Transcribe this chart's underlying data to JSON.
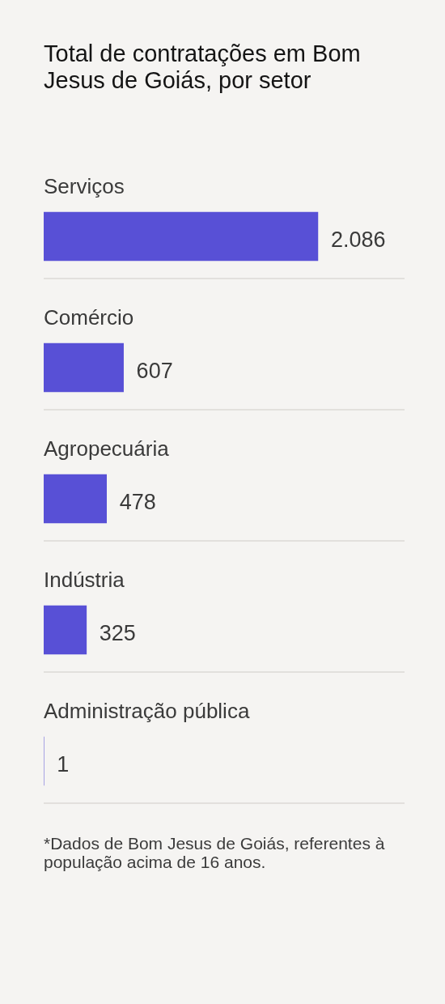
{
  "chart_data": {
    "type": "bar",
    "orientation": "horizontal",
    "title": "Total de contratações em Bom Jesus de Goiás, por setor",
    "categories": [
      "Serviços",
      "Comércio",
      "Agropecuária",
      "Indústria",
      "Administração pública"
    ],
    "values": [
      2086,
      607,
      478,
      325,
      1
    ],
    "value_labels": [
      "2.086",
      "607",
      "478",
      "325",
      "1"
    ],
    "color": "#5850d6",
    "tick_labels": "y",
    "annotations": [
      "*Dados de Bom Jesus de Goiás, referentes à população acima de 16 anos."
    ]
  }
}
